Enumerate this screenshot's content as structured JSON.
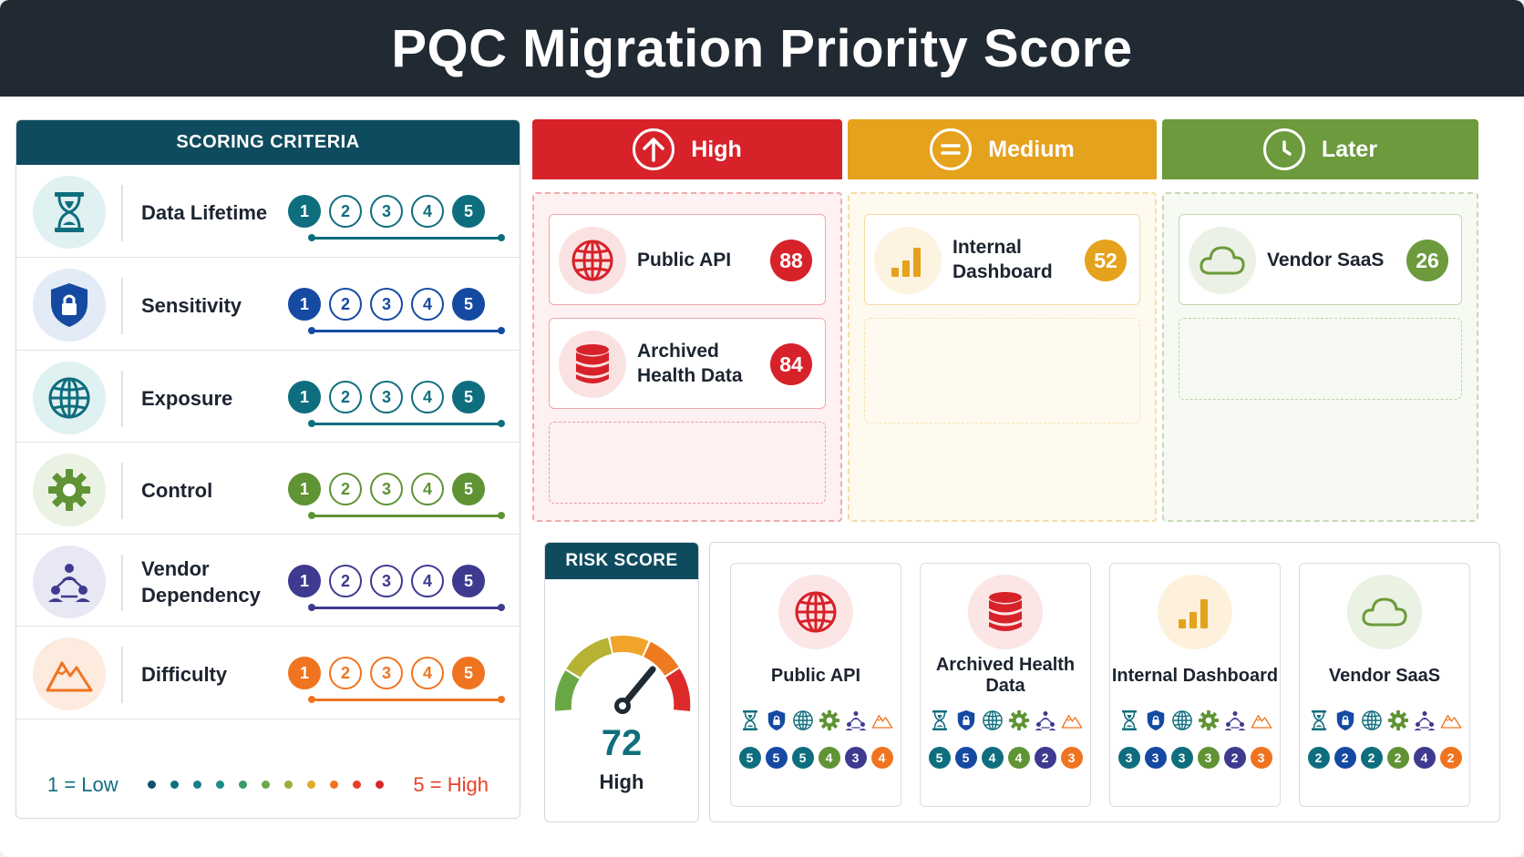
{
  "title": "PQC Migration Priority Score",
  "criteria": {
    "heading": "SCORING CRITERIA",
    "items": [
      {
        "label": "Data Lifetime",
        "icon": "hourglass-icon",
        "color": "#0f6e7e",
        "bg": "#e0f1f2"
      },
      {
        "label": "Sensitivity",
        "icon": "shield-lock-icon",
        "color": "#154aa3",
        "bg": "#e2ebf6"
      },
      {
        "label": "Exposure",
        "icon": "globe-icon",
        "color": "#0f6e7e",
        "bg": "#e0f1f2"
      },
      {
        "label": "Control",
        "icon": "gear-icon",
        "color": "#5f9334",
        "bg": "#eaf2e4"
      },
      {
        "label": "Vendor Dependency",
        "icon": "network-icon",
        "color": "#3e3a8f",
        "bg": "#e8e7f4"
      },
      {
        "label": "Difficulty",
        "icon": "mountain-icon",
        "color": "#f07420",
        "bg": "#fdebdf"
      }
    ],
    "scale": [
      "1",
      "2",
      "3",
      "4",
      "5"
    ],
    "legend_low": "1 = Low",
    "legend_high": "5 = High",
    "legend_colors": [
      "#124f6e",
      "#0f6e7e",
      "#15808a",
      "#1a8e8a",
      "#3a9a6c",
      "#6aa846",
      "#9aae38",
      "#e3a92c",
      "#f07420",
      "#e6412a",
      "#d92727"
    ]
  },
  "columns": [
    {
      "label": "High",
      "color": "#d7222a",
      "soft": "#fdf1f1",
      "icon": "arrow-up-icon",
      "cards": [
        {
          "label": "Public API",
          "score": "88",
          "icon": "globe-icon"
        },
        {
          "label": "Archived Health Data",
          "score": "84",
          "icon": "database-icon"
        }
      ]
    },
    {
      "label": "Medium",
      "color": "#e5a21d",
      "soft": "#fefaf0",
      "icon": "equals-icon",
      "cards": [
        {
          "label": "Internal Dashboard",
          "score": "52",
          "icon": "bar-chart-icon"
        }
      ]
    },
    {
      "label": "Later",
      "color": "#6c9a3c",
      "soft": "#f6faf2",
      "icon": "clock-icon",
      "cards": [
        {
          "label": "Vendor SaaS",
          "score": "26",
          "icon": "cloud-icon"
        }
      ]
    }
  ],
  "risk": {
    "heading": "RISK SCORE",
    "value": "72",
    "level": "High",
    "fraction": 0.72
  },
  "systems": [
    {
      "name": "Public API",
      "icon": "globe-icon",
      "scores": [
        "5",
        "5",
        "5",
        "4",
        "3",
        "4"
      ]
    },
    {
      "name": "Archived Health Data",
      "icon": "database-icon",
      "scores": [
        "5",
        "5",
        "4",
        "4",
        "2",
        "3"
      ]
    },
    {
      "name": "Internal Dashboard",
      "icon": "bar-chart-icon",
      "scores": [
        "3",
        "3",
        "3",
        "3",
        "2",
        "3"
      ]
    },
    {
      "name": "Vendor SaaS",
      "icon": "cloud-icon",
      "scores": [
        "2",
        "2",
        "2",
        "2",
        "4",
        "2"
      ]
    }
  ]
}
